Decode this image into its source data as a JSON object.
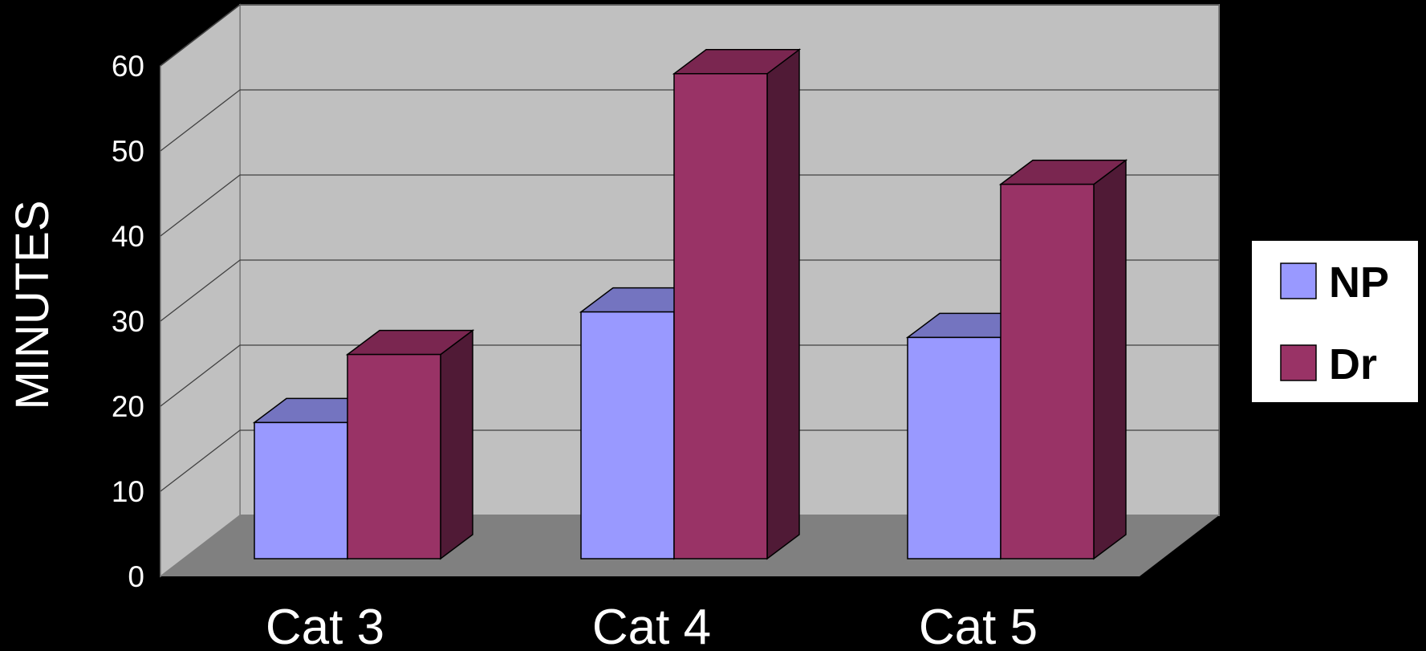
{
  "chart_data": {
    "type": "bar",
    "three_d": true,
    "categories": [
      "Cat 3",
      "Cat 4",
      "Cat 5"
    ],
    "series": [
      {
        "name": "NP",
        "values": [
          16,
          29,
          26
        ]
      },
      {
        "name": "Dr",
        "values": [
          24,
          57,
          44
        ]
      }
    ],
    "title": "",
    "xlabel": "",
    "ylabel": "MINUTES",
    "ylim": [
      0,
      60
    ],
    "yticks": [
      0,
      10,
      20,
      30,
      40,
      50,
      60
    ],
    "grid": true,
    "legend": "right"
  },
  "colors": {
    "background": "#000000",
    "back_wall": "#c0c0c0",
    "side_wall": "#c0c0c0",
    "floor": "#808080",
    "np_front": "#9999ff",
    "np_top": "#7474c0",
    "np_side": "#5c5ca0",
    "dr_front": "#993366",
    "dr_top": "#7a2650",
    "dr_side": "#501a36",
    "legend_bg": "#ffffff"
  }
}
